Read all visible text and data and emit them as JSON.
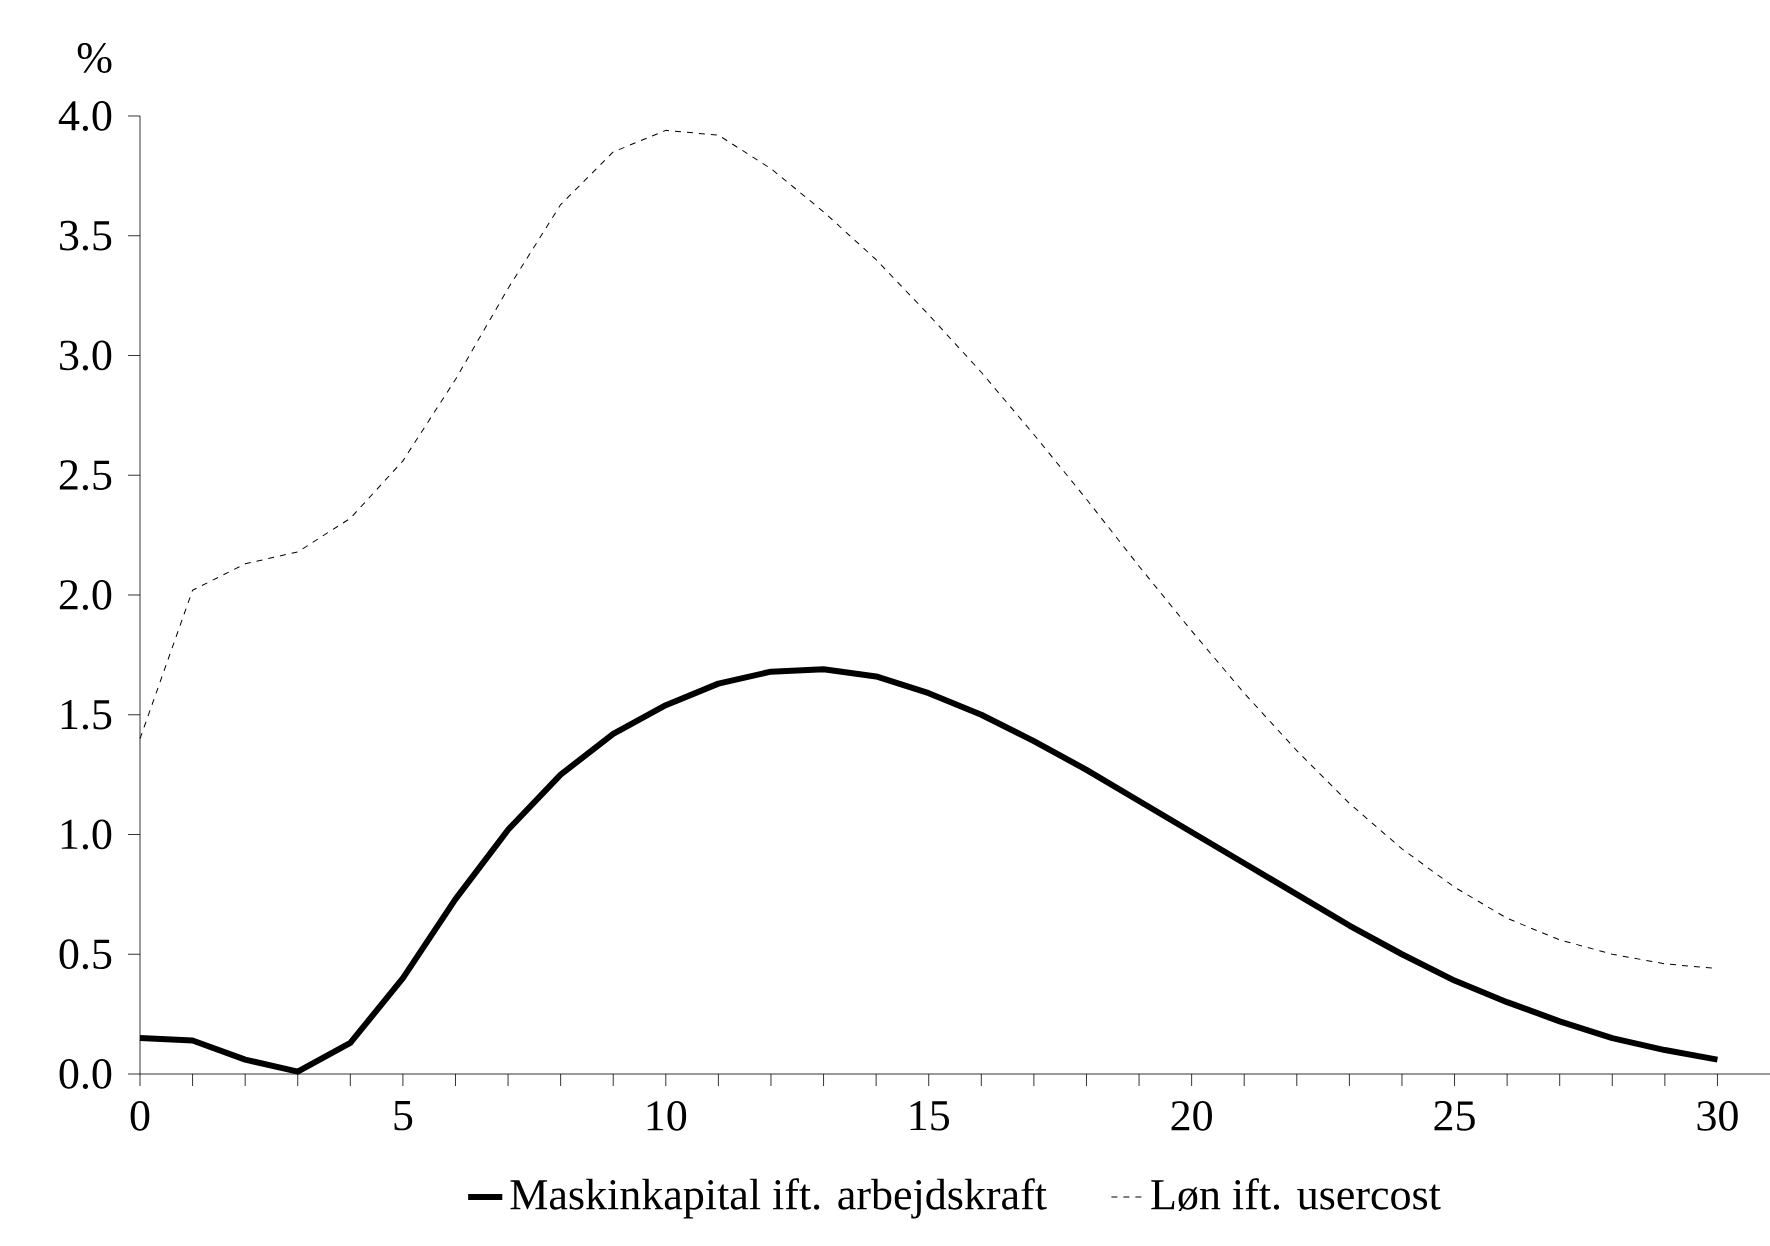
{
  "chart_data": {
    "type": "line",
    "ylabel": "%",
    "x": [
      0,
      1,
      2,
      3,
      4,
      5,
      6,
      7,
      8,
      9,
      10,
      11,
      12,
      13,
      14,
      15,
      16,
      17,
      18,
      19,
      20,
      21,
      22,
      23,
      24,
      25,
      26,
      27,
      28,
      29,
      30
    ],
    "series": [
      {
        "name": "Maskinkapital ift. arbejdskraft",
        "color": "#000000",
        "line_style": "solid",
        "values": [
          0.15,
          0.14,
          0.06,
          0.01,
          0.13,
          0.4,
          0.73,
          1.02,
          1.25,
          1.42,
          1.54,
          1.63,
          1.68,
          1.69,
          1.66,
          1.59,
          1.5,
          1.39,
          1.27,
          1.14,
          1.01,
          0.88,
          0.75,
          0.62,
          0.5,
          0.39,
          0.3,
          0.22,
          0.15,
          0.1,
          0.06
        ]
      },
      {
        "name": "Løn ift. usercost",
        "color": "#000000",
        "line_style": "dashed",
        "values": [
          1.4,
          2.02,
          2.13,
          2.18,
          2.32,
          2.56,
          2.9,
          3.28,
          3.63,
          3.85,
          3.94,
          3.92,
          3.78,
          3.6,
          3.4,
          3.17,
          2.93,
          2.67,
          2.4,
          2.12,
          1.85,
          1.59,
          1.35,
          1.13,
          0.94,
          0.78,
          0.65,
          0.56,
          0.5,
          0.46,
          0.44
        ]
      }
    ],
    "xlim": [
      0,
      31
    ],
    "ylim": [
      0,
      4
    ],
    "xticks": [
      0,
      5,
      10,
      15,
      20,
      25,
      30
    ],
    "yticks": [
      {
        "value": 0,
        "label": "0.0"
      },
      {
        "value": 0.5,
        "label": "0.5"
      },
      {
        "value": 1,
        "label": "1.0"
      },
      {
        "value": 1.5,
        "label": "1.5"
      },
      {
        "value": 2,
        "label": "2.0"
      },
      {
        "value": 2.5,
        "label": "2.5"
      },
      {
        "value": 3,
        "label": "3.0"
      },
      {
        "value": 3.5,
        "label": "3.5"
      },
      {
        "value": 4,
        "label": "4.0"
      }
    ],
    "grid": false,
    "legend": "bottom",
    "marker": "none"
  }
}
